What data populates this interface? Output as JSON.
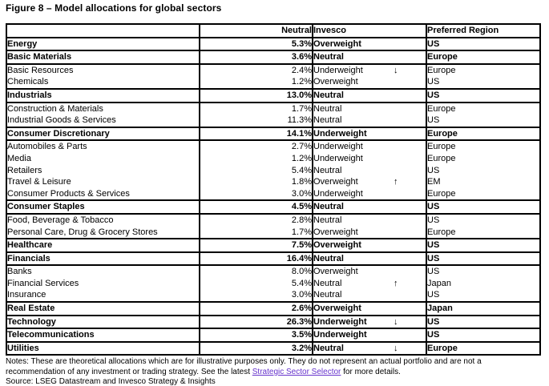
{
  "title": "Figure 8 – Model allocations for global sectors",
  "table": {
    "columns": [
      "",
      "Neutral",
      "Invesco",
      "Preferred Region"
    ],
    "rows": [
      {
        "sector": "Energy",
        "neutral": "5.3%",
        "invesco": "Overweight",
        "arrow": "",
        "region": "US",
        "bold": true
      },
      {
        "sector": "Basic Materials",
        "neutral": "3.6%",
        "invesco": "Neutral",
        "arrow": "",
        "region": "Europe",
        "bold": true
      },
      {
        "sector": "Basic Resources",
        "neutral": "2.4%",
        "invesco": "Underweight",
        "arrow": "↓",
        "region": "Europe",
        "bold": false
      },
      {
        "sector": "Chemicals",
        "neutral": "1.2%",
        "invesco": "Overweight",
        "arrow": "",
        "region": "US",
        "bold": false
      },
      {
        "sector": "Industrials",
        "neutral": "13.0%",
        "invesco": "Neutral",
        "arrow": "",
        "region": "US",
        "bold": true
      },
      {
        "sector": "Construction & Materials",
        "neutral": "1.7%",
        "invesco": "Neutral",
        "arrow": "",
        "region": "Europe",
        "bold": false
      },
      {
        "sector": "Industrial Goods & Services",
        "neutral": "11.3%",
        "invesco": "Neutral",
        "arrow": "",
        "region": "US",
        "bold": false
      },
      {
        "sector": "Consumer Discretionary",
        "neutral": "14.1%",
        "invesco": "Underweight",
        "arrow": "",
        "region": "Europe",
        "bold": true
      },
      {
        "sector": "Automobiles & Parts",
        "neutral": "2.7%",
        "invesco": "Underweight",
        "arrow": "",
        "region": "Europe",
        "bold": false
      },
      {
        "sector": "Media",
        "neutral": "1.2%",
        "invesco": "Underweight",
        "arrow": "",
        "region": "Europe",
        "bold": false
      },
      {
        "sector": "Retailers",
        "neutral": "5.4%",
        "invesco": "Neutral",
        "arrow": "",
        "region": "US",
        "bold": false
      },
      {
        "sector": "Travel & Leisure",
        "neutral": "1.8%",
        "invesco": "Overweight",
        "arrow": "↑",
        "region": "EM",
        "bold": false
      },
      {
        "sector": "Consumer Products & Services",
        "neutral": "3.0%",
        "invesco": "Underweight",
        "arrow": "",
        "region": "Europe",
        "bold": false
      },
      {
        "sector": "Consumer Staples",
        "neutral": "4.5%",
        "invesco": "Neutral",
        "arrow": "",
        "region": "US",
        "bold": true
      },
      {
        "sector": "Food, Beverage & Tobacco",
        "neutral": "2.8%",
        "invesco": "Neutral",
        "arrow": "",
        "region": "US",
        "bold": false
      },
      {
        "sector": "Personal Care, Drug & Grocery Stores",
        "neutral": "1.7%",
        "invesco": "Overweight",
        "arrow": "",
        "region": "Europe",
        "bold": false
      },
      {
        "sector": "Healthcare",
        "neutral": "7.5%",
        "invesco": "Overweight",
        "arrow": "",
        "region": "US",
        "bold": true
      },
      {
        "sector": "Financials",
        "neutral": "16.4%",
        "invesco": "Neutral",
        "arrow": "",
        "region": "US",
        "bold": true
      },
      {
        "sector": "Banks",
        "neutral": "8.0%",
        "invesco": "Overweight",
        "arrow": "",
        "region": "US",
        "bold": false
      },
      {
        "sector": "Financial Services",
        "neutral": "5.4%",
        "invesco": "Neutral",
        "arrow": "↑",
        "region": "Japan",
        "bold": false
      },
      {
        "sector": "Insurance",
        "neutral": "3.0%",
        "invesco": "Neutral",
        "arrow": "",
        "region": "US",
        "bold": false
      },
      {
        "sector": "Real Estate",
        "neutral": "2.6%",
        "invesco": "Overweight",
        "arrow": "",
        "region": "Japan",
        "bold": true
      },
      {
        "sector": "Technology",
        "neutral": "26.3%",
        "invesco": "Underweight",
        "arrow": "↓",
        "region": "US",
        "bold": true
      },
      {
        "sector": "Telecommunications",
        "neutral": "3.5%",
        "invesco": "Underweight",
        "arrow": "",
        "region": "US",
        "bold": true
      },
      {
        "sector": "Utilities",
        "neutral": "3.2%",
        "invesco": "Neutral",
        "arrow": "↓",
        "region": "Europe",
        "bold": true
      }
    ]
  },
  "notes": {
    "part1": "Notes: These are theoretical allocations which are for illustrative purposes only. They do not represent an actual portfolio and are not a recommendation of any investment or trading strategy. See the latest ",
    "link_text": "Strategic Sector Selector",
    "part2": " for more details."
  },
  "source": "Source: LSEG Datastream and Invesco Strategy & Insights",
  "colors": {
    "link": "#6633cc",
    "border": "#000000",
    "text": "#000000",
    "background": "#ffffff"
  }
}
